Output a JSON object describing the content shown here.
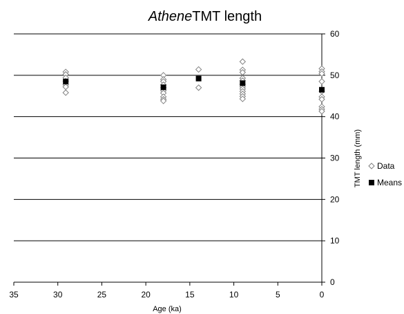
{
  "chart_data": {
    "type": "scatter",
    "title": {
      "italic_part": "Athene",
      "rest": "TMT length"
    },
    "xlabel": "Age (ka)",
    "ylabel": "TMT length (mm)",
    "xlim": [
      35,
      0
    ],
    "ylim": [
      0,
      60
    ],
    "x_axis": "reversed",
    "y_axis_position": "right",
    "x_ticks": [
      "35",
      "30",
      "25",
      "20",
      "15",
      "10",
      "5",
      "0"
    ],
    "y_ticks": [
      "0",
      "10",
      "20",
      "30",
      "40",
      "50",
      "60"
    ],
    "grid": "horizontal",
    "legend_position": "right",
    "series": [
      {
        "name": "Data",
        "marker": "open-diamond",
        "color": "#808080",
        "points": [
          {
            "x": 29.1,
            "y": 50.8
          },
          {
            "x": 29.1,
            "y": 50.2
          },
          {
            "x": 29.1,
            "y": 49.4
          },
          {
            "x": 29.1,
            "y": 48.6
          },
          {
            "x": 29.1,
            "y": 47.7
          },
          {
            "x": 29.1,
            "y": 47.2
          },
          {
            "x": 29.1,
            "y": 45.8
          },
          {
            "x": 18.0,
            "y": 50.0
          },
          {
            "x": 18.0,
            "y": 49.0
          },
          {
            "x": 18.0,
            "y": 48.5
          },
          {
            "x": 18.0,
            "y": 47.7
          },
          {
            "x": 18.0,
            "y": 47.0
          },
          {
            "x": 18.0,
            "y": 46.3
          },
          {
            "x": 18.0,
            "y": 45.7
          },
          {
            "x": 18.0,
            "y": 44.8
          },
          {
            "x": 18.0,
            "y": 44.2
          },
          {
            "x": 18.0,
            "y": 43.8
          },
          {
            "x": 14.0,
            "y": 51.4
          },
          {
            "x": 14.0,
            "y": 47.0
          },
          {
            "x": 9.0,
            "y": 53.3
          },
          {
            "x": 9.0,
            "y": 51.3
          },
          {
            "x": 9.0,
            "y": 50.7
          },
          {
            "x": 9.0,
            "y": 49.3
          },
          {
            "x": 9.0,
            "y": 48.7
          },
          {
            "x": 9.0,
            "y": 47.8
          },
          {
            "x": 9.0,
            "y": 47.2
          },
          {
            "x": 9.0,
            "y": 46.7
          },
          {
            "x": 9.0,
            "y": 46.1
          },
          {
            "x": 9.0,
            "y": 45.5
          },
          {
            "x": 9.0,
            "y": 44.9
          },
          {
            "x": 9.0,
            "y": 44.3
          },
          {
            "x": 0.0,
            "y": 51.6
          },
          {
            "x": 0.0,
            "y": 50.9
          },
          {
            "x": 0.0,
            "y": 50.4
          },
          {
            "x": 0.0,
            "y": 48.5
          },
          {
            "x": 0.0,
            "y": 46.1
          },
          {
            "x": 0.0,
            "y": 44.8
          },
          {
            "x": 0.0,
            "y": 44.2
          },
          {
            "x": 0.0,
            "y": 42.4
          },
          {
            "x": 0.0,
            "y": 41.8
          },
          {
            "x": 0.0,
            "y": 41.3
          }
        ]
      },
      {
        "name": "Means",
        "marker": "filled-square",
        "color": "#000000",
        "points": [
          {
            "x": 29.1,
            "y": 48.5
          },
          {
            "x": 18.0,
            "y": 47.1
          },
          {
            "x": 14.0,
            "y": 49.2
          },
          {
            "x": 9.0,
            "y": 48.1
          },
          {
            "x": 0.0,
            "y": 46.5
          }
        ]
      }
    ]
  }
}
